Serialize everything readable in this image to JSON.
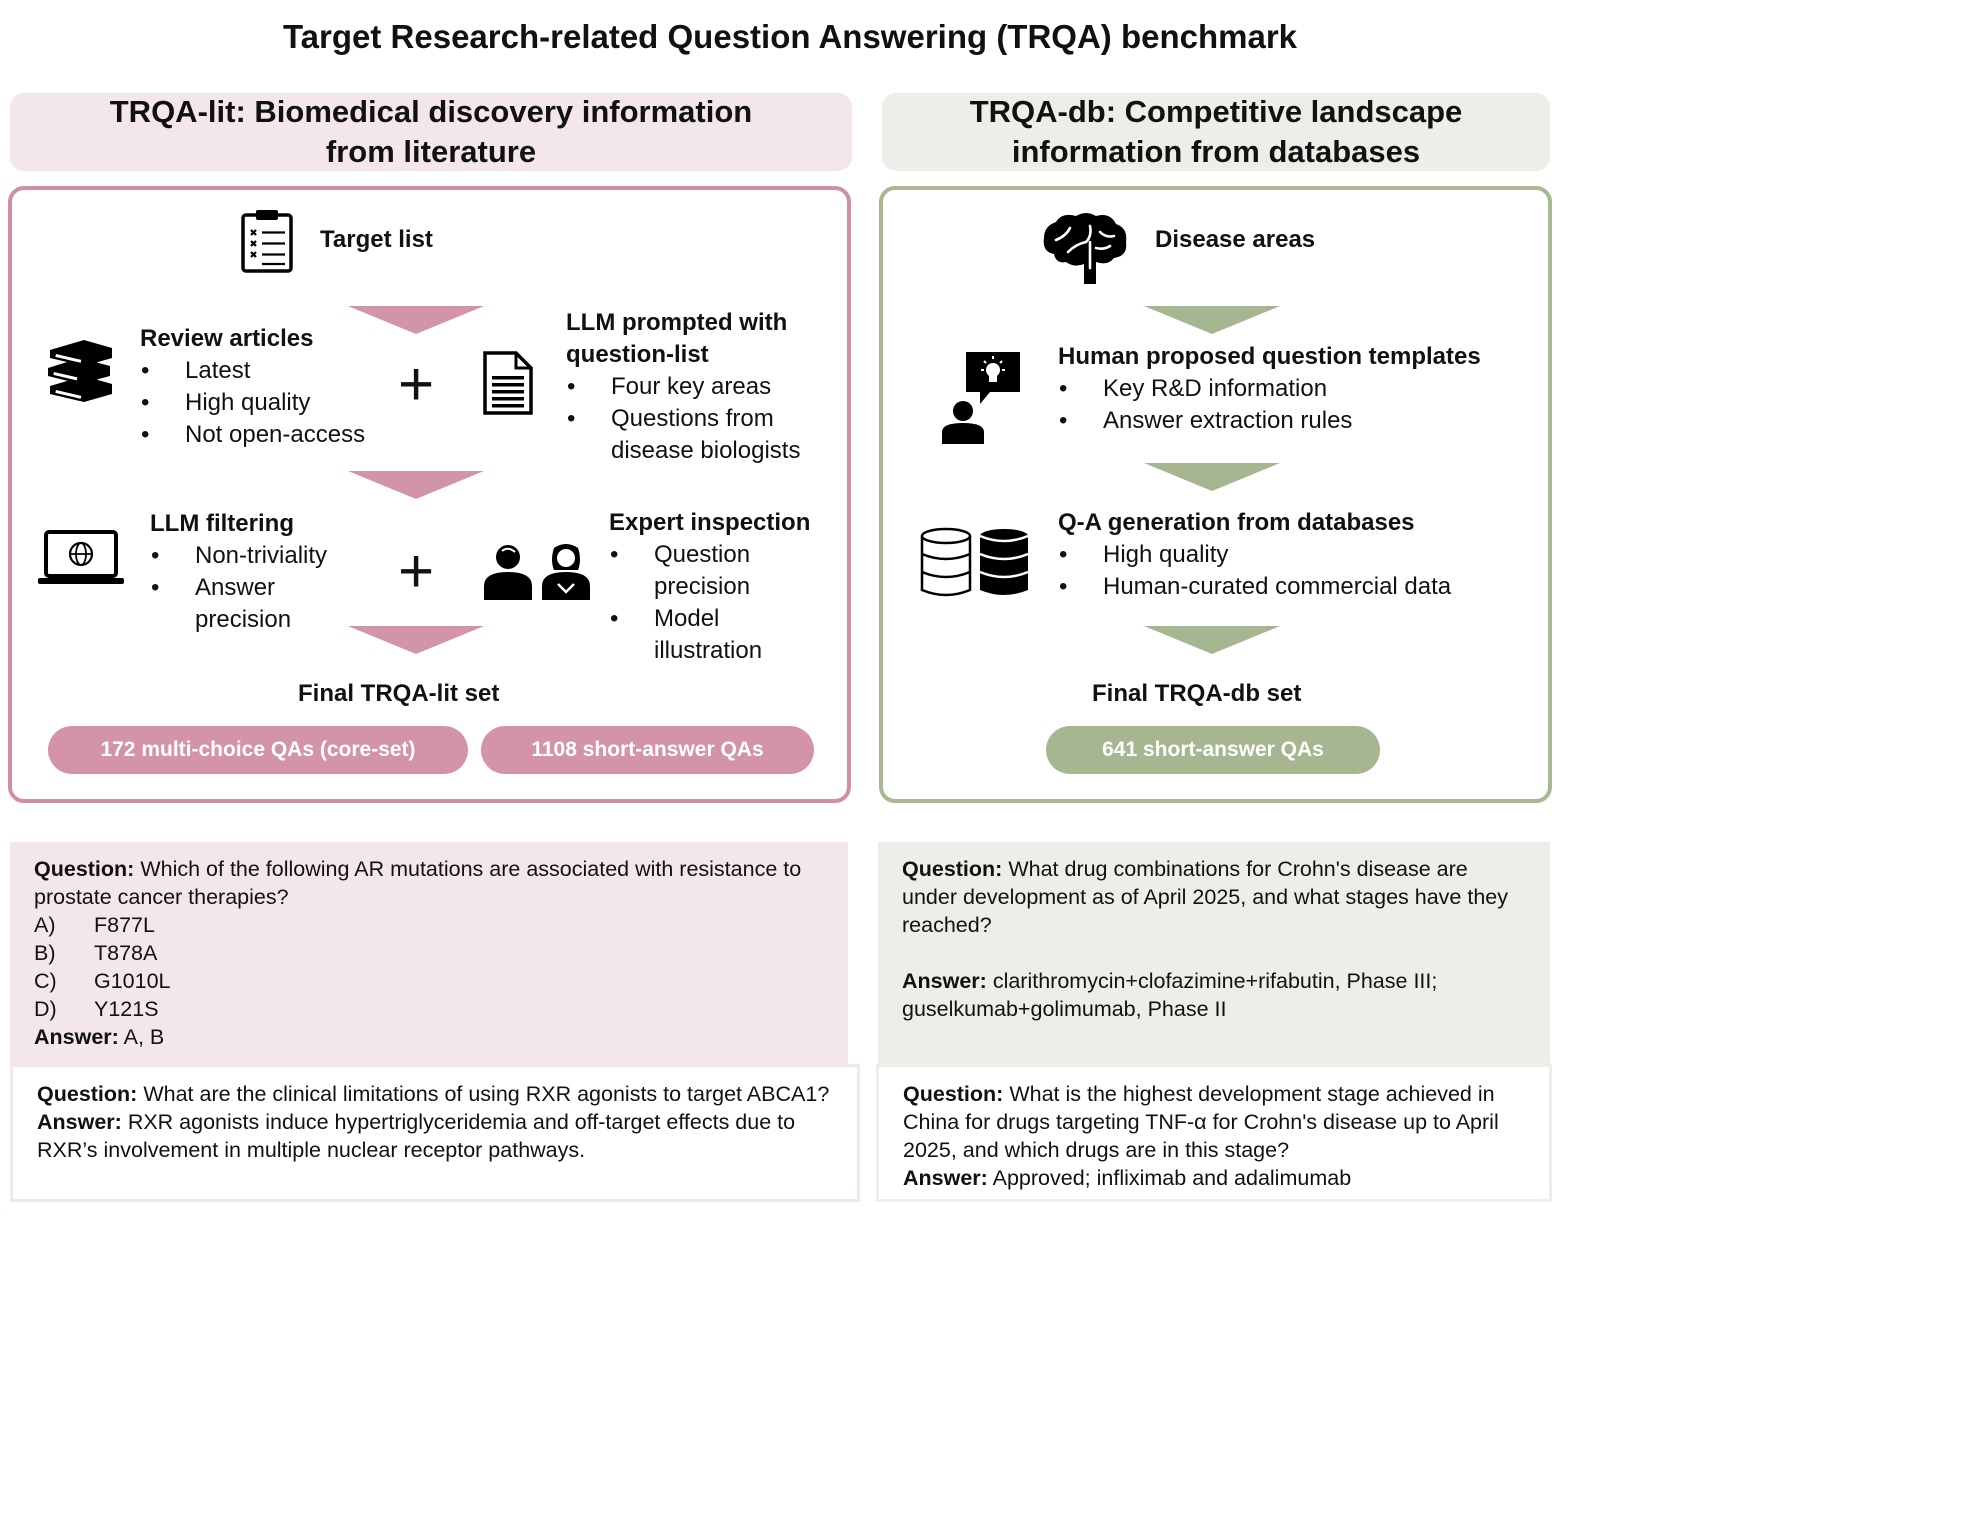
{
  "title": "Target Research-related Question Answering (TRQA) benchmark",
  "lit": {
    "header_line1": "TRQA-lit: Biomedical discovery information",
    "header_line2": "from literature",
    "target_list": "Target list",
    "review": {
      "head": "Review articles",
      "items": [
        "Latest",
        "High quality",
        "Not open-access"
      ]
    },
    "llm_prompt": {
      "head_line1": "LLM prompted with",
      "head_line2": "question-list",
      "items": [
        "Four key areas",
        "Questions from disease biologists"
      ]
    },
    "llm_filter": {
      "head": "LLM filtering",
      "items": [
        "Non-triviality",
        "Answer precision"
      ]
    },
    "expert": {
      "head": "Expert inspection",
      "items": [
        "Question precision",
        "Model illustration"
      ]
    },
    "plus": "+",
    "final_label": "Final TRQA-lit set",
    "pill_mc": "172 multi-choice QAs (core-set)",
    "pill_sa": "1108 short-answer QAs"
  },
  "db": {
    "header_line1": "TRQA-db: Competitive landscape",
    "header_line2": "information from databases",
    "disease_areas": "Disease areas",
    "templates": {
      "head": "Human proposed question templates",
      "items": [
        "Key R&D information",
        "Answer extraction rules"
      ]
    },
    "qa_gen": {
      "head": "Q-A generation from databases",
      "items": [
        "High quality",
        "Human-curated commercial data"
      ]
    },
    "final_label": "Final TRQA-db set",
    "pill_sa": "641 short-answer QAs"
  },
  "examples": {
    "question_label": "Question:",
    "answer_label": "Answer:",
    "lit1": {
      "question": "Which of the following AR mutations are associated with resistance to prostate cancer therapies?",
      "options": [
        {
          "key": "A)",
          "text": "F877L"
        },
        {
          "key": "B)",
          "text": "T878A"
        },
        {
          "key": "C)",
          "text": "G1010L"
        },
        {
          "key": "D)",
          "text": "Y121S"
        }
      ],
      "answer": "A, B"
    },
    "lit2": {
      "question": "What are the clinical limitations of using RXR agonists to target ABCA1?",
      "answer": "RXR agonists induce hypertriglyceridemia and off-target effects due to RXR’s involvement in multiple nuclear receptor pathways."
    },
    "db1": {
      "question": "What drug combinations for Crohn's disease are under development as of April 2025, and what stages have they reached?",
      "answer": "clarithromycin+clofazimine+rifabutin, Phase III; guselkumab+golimumab, Phase II"
    },
    "db2": {
      "question": "What is the highest development stage achieved in China for drugs targeting TNF-α for Crohn's disease up to April 2025, and which drugs are in this stage?",
      "answer": "Approved; infliximab and adalimumab"
    }
  },
  "colors": {
    "lit_accent": "#d393a8",
    "lit_border": "#cf90a6",
    "lit_bg": "#f3e7eb",
    "db_accent": "#a5b690",
    "db_border": "#a7b892",
    "db_bg": "#ebefe7"
  },
  "icons": {
    "target_list": "clipboard-checklist-icon",
    "review": "books-stack-icon",
    "prompt": "document-icon",
    "filter": "laptop-globe-icon",
    "expert": "two-people-icon",
    "disease": "brain-icon",
    "templates": "person-idea-icon",
    "databases": "database-icon"
  }
}
